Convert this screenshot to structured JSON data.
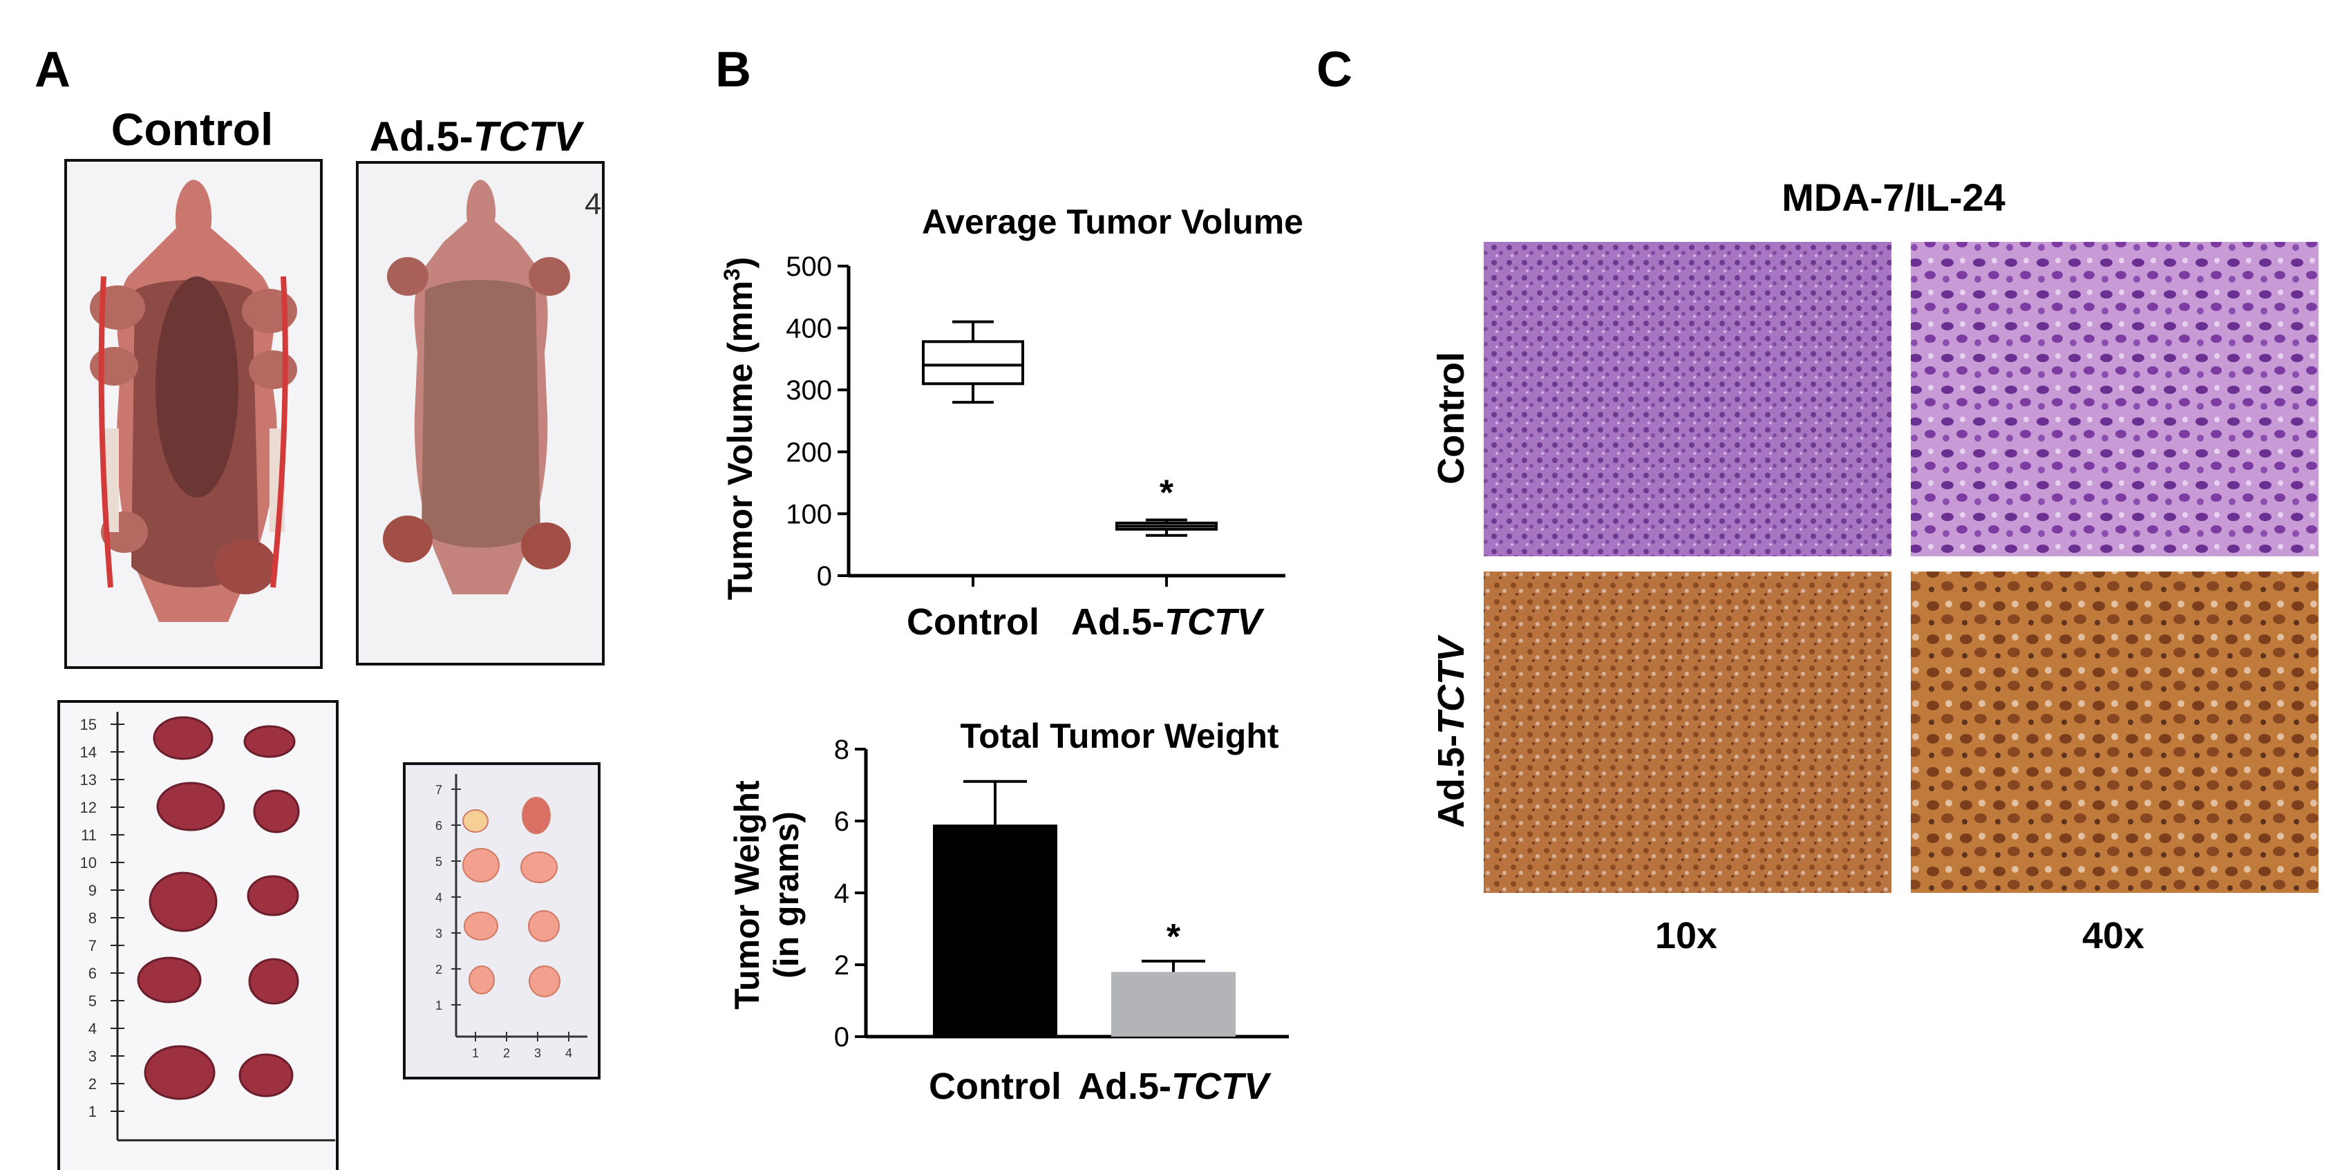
{
  "panels": {
    "a": {
      "letter": "A",
      "control_label": "Control",
      "treat_label_prefix": "Ad.5-",
      "treat_label_italic": "TCTV",
      "mouse_photo_number": "4",
      "ruler_left_ticks": [
        "15",
        "14",
        "13",
        "12",
        "11",
        "10",
        "9",
        "8",
        "7",
        "6",
        "5",
        "4",
        "3",
        "2",
        "1"
      ],
      "ruler_right_ticks": [
        "7",
        "6",
        "5",
        "4",
        "3",
        "2",
        "1"
      ],
      "ruler_right_bottom_ticks": [
        "1",
        "2",
        "3",
        "4"
      ]
    },
    "b": {
      "letter": "B"
    },
    "c": {
      "letter": "C",
      "title": "MDA-7/IL-24",
      "row_control": "Control",
      "row_treat_prefix": "Ad.5-",
      "row_treat_italic": "TCTV",
      "col_10x": "10x",
      "col_40x": "40x"
    }
  },
  "colors": {
    "black_bar": "#000000",
    "gray_bar": "#b3b4b8",
    "tissue_control": "#9b5bb0",
    "tissue_treat": "#b86a36"
  },
  "chart_data": [
    {
      "type": "box",
      "title": "Average Tumor Volume",
      "ylabel_prefix": "Tumor Volume (mm",
      "ylabel_sup": "3",
      "ylabel_suffix": ")",
      "ylim": [
        0,
        500
      ],
      "yticks": [
        0,
        100,
        200,
        300,
        400,
        500
      ],
      "categories": [
        "Control",
        "Ad.5-TCTV"
      ],
      "category_prefix": [
        "Control",
        "Ad.5-"
      ],
      "category_italic": [
        "",
        "TCTV"
      ],
      "boxes": [
        {
          "min": 280,
          "q1": 310,
          "median": 340,
          "q3": 378,
          "max": 410
        },
        {
          "min": 65,
          "q1": 75,
          "median": 80,
          "q3": 85,
          "max": 90
        }
      ],
      "annotations": [
        "",
        "*"
      ]
    },
    {
      "type": "bar",
      "title": "Total Tumor Weight",
      "ylabel_line1": "Tumor Weight",
      "ylabel_line2": "(in grams)",
      "ylim": [
        0,
        8
      ],
      "yticks": [
        0,
        2,
        4,
        6,
        8
      ],
      "categories": [
        "Control",
        "Ad.5-TCTV"
      ],
      "category_prefix": [
        "Control",
        "Ad.5-"
      ],
      "category_italic": [
        "",
        "TCTV"
      ],
      "values": [
        5.9,
        1.8
      ],
      "errors": [
        1.2,
        0.3
      ],
      "bar_colors": [
        "#000000",
        "#b3b4b8"
      ],
      "annotations": [
        "",
        "*"
      ]
    }
  ]
}
